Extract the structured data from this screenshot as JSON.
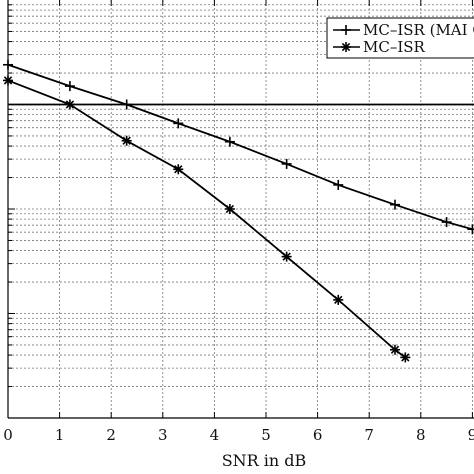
{
  "chart_data": {
    "type": "line",
    "xlabel": "SNR in dB",
    "ylabel": "",
    "title": "",
    "x_ticks": [
      0,
      1,
      2,
      3,
      4,
      5,
      6,
      7,
      8,
      9
    ],
    "xlim": [
      0,
      9
    ],
    "y_scale": "log",
    "ylim": [
      0.0001,
      1
    ],
    "grid": true,
    "legend_position": "top-right",
    "reference_level": 0.1,
    "series": [
      {
        "name": "MC–ISR (MAI C",
        "marker": "plus",
        "x": [
          0,
          1.2,
          2.3,
          3.3,
          4.3,
          5.4,
          6.4,
          7.5,
          8.5,
          9.0
        ],
        "y": [
          0.24,
          0.15,
          0.1,
          0.066,
          0.044,
          0.027,
          0.017,
          0.011,
          0.0075,
          0.0064
        ]
      },
      {
        "name": "MC–ISR",
        "marker": "star",
        "x": [
          0,
          1.2,
          2.3,
          3.3,
          4.3,
          5.4,
          6.4,
          7.5,
          7.7
        ],
        "y": [
          0.17,
          0.1,
          0.045,
          0.024,
          0.01,
          0.0035,
          0.00135,
          0.00045,
          0.00038
        ]
      }
    ]
  }
}
